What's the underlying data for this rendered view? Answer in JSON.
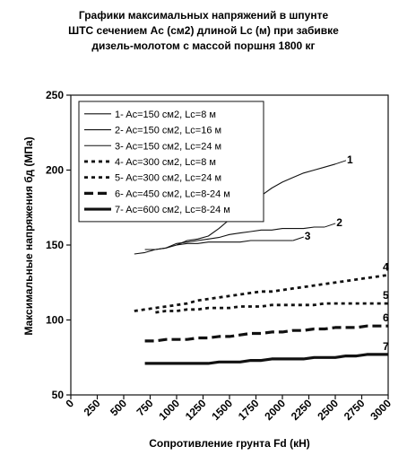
{
  "chart_data": {
    "type": "line",
    "title": [
      "Графики максимальных напряжений в шпунте",
      "ШТС сечением Ac (см2) длиной Lc (м) при забивке",
      "дизель-молотом с массой поршня 1800 кг"
    ],
    "xlabel": "Сопротивление грунта Fd (кН)",
    "ylabel": "Максимальные напряжения бд  (МПа)",
    "xlim": [
      0,
      3000
    ],
    "ylim": [
      50,
      250
    ],
    "xticks": [
      "0",
      "250",
      "500",
      "750",
      "1000",
      "1250",
      "1500",
      "1750",
      "2000",
      "2250",
      "2500",
      "2750",
      "3000"
    ],
    "yticks": [
      "50",
      "100",
      "150",
      "200",
      "250"
    ],
    "grid": false,
    "legend_position": "top-left",
    "series": [
      {
        "name": "1- Ac=150 см2, Lc=8 м",
        "label": "1",
        "style": "thin",
        "points": [
          [
            600,
            144
          ],
          [
            700,
            145
          ],
          [
            800,
            147
          ],
          [
            900,
            148
          ],
          [
            1000,
            150
          ],
          [
            1100,
            153
          ],
          [
            1200,
            154
          ],
          [
            1300,
            156
          ],
          [
            1400,
            161
          ],
          [
            1500,
            167
          ],
          [
            1600,
            172
          ],
          [
            1700,
            178
          ],
          [
            1800,
            183
          ],
          [
            1900,
            188
          ],
          [
            2000,
            192
          ],
          [
            2100,
            195
          ],
          [
            2200,
            198
          ],
          [
            2300,
            200
          ],
          [
            2400,
            202
          ],
          [
            2500,
            204
          ]
        ]
      },
      {
        "name": "2- Ac=150 см2, Lc=16 м",
        "label": "2",
        "style": "thin",
        "points": [
          [
            700,
            147
          ],
          [
            800,
            147
          ],
          [
            900,
            148
          ],
          [
            1000,
            151
          ],
          [
            1100,
            152
          ],
          [
            1200,
            153
          ],
          [
            1300,
            154
          ],
          [
            1400,
            155
          ],
          [
            1500,
            157
          ],
          [
            1600,
            158
          ],
          [
            1700,
            159
          ],
          [
            1800,
            160
          ],
          [
            1900,
            160
          ],
          [
            2000,
            161
          ],
          [
            2100,
            161
          ],
          [
            2200,
            161
          ],
          [
            2300,
            162
          ],
          [
            2400,
            162
          ]
        ]
      },
      {
        "name": "3- Ac=150 см2, Lc=24 м",
        "label": "3",
        "style": "thin",
        "points": [
          [
            1000,
            150
          ],
          [
            1100,
            151
          ],
          [
            1200,
            151
          ],
          [
            1300,
            152
          ],
          [
            1400,
            152
          ],
          [
            1500,
            152
          ],
          [
            1600,
            152
          ],
          [
            1700,
            153
          ],
          [
            1800,
            153
          ],
          [
            1900,
            153
          ],
          [
            2000,
            153
          ],
          [
            2100,
            153
          ]
        ]
      },
      {
        "name": "4- Ac=300 см2, Lc=8 м",
        "label": "4",
        "style": "dotted",
        "points": [
          [
            600,
            106
          ],
          [
            700,
            107
          ],
          [
            800,
            108
          ],
          [
            900,
            109
          ],
          [
            1000,
            110
          ],
          [
            1100,
            111
          ],
          [
            1200,
            113
          ],
          [
            1300,
            114
          ],
          [
            1400,
            115
          ],
          [
            1500,
            116
          ],
          [
            1600,
            117
          ],
          [
            1700,
            118
          ],
          [
            1800,
            119
          ],
          [
            1900,
            119
          ],
          [
            2000,
            120
          ],
          [
            2100,
            121
          ],
          [
            2200,
            122
          ],
          [
            2300,
            123
          ],
          [
            2400,
            124
          ],
          [
            2500,
            125
          ],
          [
            2600,
            126
          ],
          [
            2700,
            127
          ],
          [
            2800,
            128
          ],
          [
            2900,
            129
          ],
          [
            3000,
            130
          ]
        ]
      },
      {
        "name": "5- Ac=300 см2, Lc=24 м",
        "label": "5",
        "style": "dotted",
        "points": [
          [
            800,
            105
          ],
          [
            900,
            106
          ],
          [
            1000,
            106
          ],
          [
            1100,
            107
          ],
          [
            1200,
            107
          ],
          [
            1300,
            108
          ],
          [
            1400,
            108
          ],
          [
            1500,
            108
          ],
          [
            1600,
            109
          ],
          [
            1700,
            109
          ],
          [
            1800,
            109
          ],
          [
            1900,
            110
          ],
          [
            2000,
            110
          ],
          [
            2100,
            110
          ],
          [
            2200,
            110
          ],
          [
            2300,
            110
          ],
          [
            2400,
            111
          ],
          [
            2500,
            111
          ],
          [
            2600,
            111
          ],
          [
            2700,
            111
          ],
          [
            2800,
            111
          ],
          [
            2900,
            111
          ],
          [
            3000,
            111
          ]
        ]
      },
      {
        "name": "6- Ac=450 см2, Lc=8-24 м",
        "label": "6",
        "style": "dashed",
        "points": [
          [
            700,
            86
          ],
          [
            800,
            86
          ],
          [
            900,
            87
          ],
          [
            1000,
            87
          ],
          [
            1100,
            87
          ],
          [
            1200,
            88
          ],
          [
            1300,
            88
          ],
          [
            1400,
            89
          ],
          [
            1500,
            89
          ],
          [
            1600,
            90
          ],
          [
            1700,
            91
          ],
          [
            1800,
            91
          ],
          [
            1900,
            92
          ],
          [
            2000,
            92
          ],
          [
            2100,
            93
          ],
          [
            2200,
            93
          ],
          [
            2300,
            94
          ],
          [
            2400,
            94
          ],
          [
            2500,
            95
          ],
          [
            2600,
            95
          ],
          [
            2700,
            95
          ],
          [
            2800,
            96
          ],
          [
            2900,
            96
          ],
          [
            3000,
            96
          ]
        ]
      },
      {
        "name": "7- Ac=600 см2, Lc=8-24 м",
        "label": "7",
        "style": "thick",
        "points": [
          [
            700,
            71
          ],
          [
            800,
            71
          ],
          [
            900,
            71
          ],
          [
            1000,
            71
          ],
          [
            1100,
            71
          ],
          [
            1200,
            71
          ],
          [
            1300,
            71
          ],
          [
            1400,
            72
          ],
          [
            1500,
            72
          ],
          [
            1600,
            72
          ],
          [
            1700,
            73
          ],
          [
            1800,
            73
          ],
          [
            1900,
            74
          ],
          [
            2000,
            74
          ],
          [
            2100,
            74
          ],
          [
            2200,
            74
          ],
          [
            2300,
            75
          ],
          [
            2400,
            75
          ],
          [
            2500,
            75
          ],
          [
            2600,
            76
          ],
          [
            2700,
            76
          ],
          [
            2800,
            77
          ],
          [
            2900,
            77
          ],
          [
            3000,
            77
          ]
        ]
      }
    ]
  }
}
